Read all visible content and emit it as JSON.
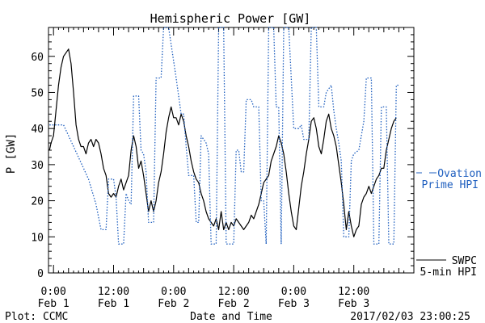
{
  "chart_data": {
    "type": "line",
    "title": "Hemispheric Power [GW]",
    "xlabel": "Date and Time",
    "ylabel": "P [GW]",
    "ylim": [
      0,
      68
    ],
    "y_ticks": [
      0,
      10,
      20,
      30,
      40,
      50,
      60
    ],
    "x_ticks": [
      {
        "t": 0,
        "time": "0:00",
        "date": "Feb 1"
      },
      {
        "t": 12,
        "time": "12:00",
        "date": "Feb 1"
      },
      {
        "t": 24,
        "time": "0:00",
        "date": "Feb 2"
      },
      {
        "t": 36,
        "time": "12:00",
        "date": "Feb 2"
      },
      {
        "t": 48,
        "time": "0:00",
        "date": "Feb 3"
      },
      {
        "t": 60,
        "time": "12:00",
        "date": "Feb 3"
      }
    ],
    "x_range_hours": [
      -1,
      72
    ],
    "footer_left": "Plot: CCMC",
    "footer_right": "2017/02/03 23:00:25",
    "grid": false,
    "series": [
      {
        "name": "SWPC 5-min HPI",
        "label_lines": [
          "SWPC",
          "5-min HPI"
        ],
        "style": "solid",
        "color": "#000000",
        "points": [
          [
            -0.8,
            34
          ],
          [
            -0.5,
            36
          ],
          [
            0,
            38
          ],
          [
            0.5,
            45
          ],
          [
            1,
            52
          ],
          [
            1.5,
            57
          ],
          [
            2,
            60
          ],
          [
            2.5,
            61
          ],
          [
            3,
            62
          ],
          [
            3.5,
            58
          ],
          [
            4,
            50
          ],
          [
            4.5,
            41
          ],
          [
            5,
            37
          ],
          [
            5.5,
            35
          ],
          [
            6,
            35
          ],
          [
            6.5,
            33
          ],
          [
            7,
            36
          ],
          [
            7.5,
            37
          ],
          [
            8,
            35
          ],
          [
            8.5,
            37
          ],
          [
            9,
            36
          ],
          [
            9.5,
            33
          ],
          [
            10,
            29
          ],
          [
            10.5,
            27
          ],
          [
            11,
            22
          ],
          [
            11.5,
            21
          ],
          [
            12,
            22
          ],
          [
            12.5,
            21
          ],
          [
            13,
            24
          ],
          [
            13.5,
            26
          ],
          [
            14,
            23
          ],
          [
            14.5,
            25
          ],
          [
            15,
            27
          ],
          [
            15.5,
            34
          ],
          [
            16,
            38
          ],
          [
            16.5,
            35
          ],
          [
            17,
            29
          ],
          [
            17.5,
            31
          ],
          [
            18,
            27
          ],
          [
            18.5,
            22
          ],
          [
            19,
            17
          ],
          [
            19.5,
            20
          ],
          [
            20,
            17
          ],
          [
            20.5,
            20
          ],
          [
            21,
            25
          ],
          [
            21.5,
            28
          ],
          [
            22,
            33
          ],
          [
            22.5,
            39
          ],
          [
            23,
            43
          ],
          [
            23.5,
            46
          ],
          [
            24,
            43
          ],
          [
            24.5,
            43
          ],
          [
            25,
            41
          ],
          [
            25.5,
            44
          ],
          [
            26,
            42
          ],
          [
            26.5,
            38
          ],
          [
            27,
            35
          ],
          [
            27.5,
            31
          ],
          [
            28,
            28
          ],
          [
            28.5,
            26
          ],
          [
            29,
            25
          ],
          [
            29.5,
            22
          ],
          [
            30,
            20
          ],
          [
            30.5,
            17
          ],
          [
            31,
            15
          ],
          [
            31.5,
            14
          ],
          [
            32,
            13
          ],
          [
            32.5,
            15
          ],
          [
            33,
            12
          ],
          [
            33.5,
            17
          ],
          [
            34,
            12
          ],
          [
            34.5,
            14
          ],
          [
            35,
            12
          ],
          [
            35.5,
            14
          ],
          [
            36,
            13
          ],
          [
            36.5,
            15
          ],
          [
            37,
            14
          ],
          [
            37.5,
            13
          ],
          [
            38,
            12
          ],
          [
            38.5,
            13
          ],
          [
            39,
            14
          ],
          [
            39.5,
            16
          ],
          [
            40,
            15
          ],
          [
            40.5,
            17
          ],
          [
            41,
            19
          ],
          [
            41.5,
            22
          ],
          [
            42,
            25
          ],
          [
            42.5,
            26
          ],
          [
            43,
            27
          ],
          [
            43.5,
            31
          ],
          [
            44,
            33
          ],
          [
            44.5,
            35
          ],
          [
            45,
            38
          ],
          [
            45.5,
            36
          ],
          [
            46,
            33
          ],
          [
            46.5,
            28
          ],
          [
            47,
            22
          ],
          [
            47.5,
            17
          ],
          [
            48,
            13
          ],
          [
            48.5,
            12
          ],
          [
            49,
            18
          ],
          [
            49.5,
            24
          ],
          [
            50,
            28
          ],
          [
            50.5,
            33
          ],
          [
            51,
            37
          ],
          [
            51.5,
            42
          ],
          [
            52,
            43
          ],
          [
            52.5,
            40
          ],
          [
            53,
            35
          ],
          [
            53.5,
            33
          ],
          [
            54,
            37
          ],
          [
            54.5,
            42
          ],
          [
            55,
            44
          ],
          [
            55.5,
            40
          ],
          [
            56,
            38
          ],
          [
            56.5,
            35
          ],
          [
            57,
            30
          ],
          [
            57.5,
            25
          ],
          [
            58,
            19
          ],
          [
            58.5,
            12
          ],
          [
            59,
            17
          ],
          [
            59.5,
            13
          ],
          [
            60,
            10
          ],
          [
            60.5,
            12
          ],
          [
            61,
            13
          ],
          [
            61.5,
            19
          ],
          [
            62,
            21
          ],
          [
            62.5,
            22
          ],
          [
            63,
            24
          ],
          [
            63.5,
            22
          ],
          [
            64,
            24
          ],
          [
            64.5,
            26
          ],
          [
            65,
            27
          ],
          [
            65.5,
            29
          ],
          [
            66,
            29
          ],
          [
            66.5,
            34
          ],
          [
            67,
            37
          ],
          [
            67.5,
            40
          ],
          [
            68,
            42
          ],
          [
            68.5,
            43
          ]
        ]
      },
      {
        "name": "Ovation Prime HPI",
        "label_lines": [
          "Ovation",
          "Prime HPI"
        ],
        "style": "dotted",
        "color": "#1f5fbf",
        "points": [
          [
            -0.8,
            41
          ],
          [
            2,
            41
          ],
          [
            3,
            38
          ],
          [
            5,
            32
          ],
          [
            7,
            26
          ],
          [
            8.5,
            19
          ],
          [
            9.5,
            12
          ],
          [
            10.5,
            12
          ],
          [
            11,
            26
          ],
          [
            12,
            26
          ],
          [
            12.5,
            21
          ],
          [
            13,
            8
          ],
          [
            14,
            8
          ],
          [
            14.5,
            22
          ],
          [
            15,
            20
          ],
          [
            15.5,
            19
          ],
          [
            16,
            49
          ],
          [
            17,
            49
          ],
          [
            17.5,
            34
          ],
          [
            18,
            33
          ],
          [
            18.5,
            28
          ],
          [
            19,
            14
          ],
          [
            20,
            14
          ],
          [
            20.5,
            54
          ],
          [
            21.5,
            54
          ],
          [
            22,
            68
          ],
          [
            23,
            68
          ],
          [
            24.5,
            54
          ],
          [
            25.5,
            44
          ],
          [
            26,
            44
          ],
          [
            26.5,
            35
          ],
          [
            27,
            27
          ],
          [
            28,
            27
          ],
          [
            28.5,
            14
          ],
          [
            29,
            14
          ],
          [
            29.5,
            38
          ],
          [
            30.5,
            36
          ],
          [
            31,
            33
          ],
          [
            31.5,
            8
          ],
          [
            32.5,
            8
          ],
          [
            33,
            68
          ],
          [
            34,
            68
          ],
          [
            34.5,
            8
          ],
          [
            36,
            8
          ],
          [
            36.5,
            34
          ],
          [
            37,
            34
          ],
          [
            37.5,
            28
          ],
          [
            38,
            28
          ],
          [
            38.5,
            48
          ],
          [
            39.5,
            48
          ],
          [
            40,
            46
          ],
          [
            41,
            46
          ],
          [
            41.5,
            20
          ],
          [
            42,
            20
          ],
          [
            42.5,
            8
          ],
          [
            43,
            68
          ],
          [
            44,
            68
          ],
          [
            44.5,
            46
          ],
          [
            45,
            46
          ],
          [
            45.5,
            8
          ],
          [
            46,
            68
          ],
          [
            47,
            68
          ],
          [
            48,
            40
          ],
          [
            49,
            40
          ],
          [
            49.5,
            41
          ],
          [
            50,
            37
          ],
          [
            51,
            37
          ],
          [
            51.5,
            68
          ],
          [
            52.5,
            68
          ],
          [
            53,
            46
          ],
          [
            54,
            46
          ],
          [
            54.5,
            50
          ],
          [
            55.5,
            52
          ],
          [
            56,
            45
          ],
          [
            56.5,
            40
          ],
          [
            57,
            36
          ],
          [
            57.5,
            31
          ],
          [
            58,
            10
          ],
          [
            59,
            10
          ],
          [
            59.5,
            31
          ],
          [
            60,
            33
          ],
          [
            61,
            34
          ],
          [
            61.5,
            38
          ],
          [
            62,
            42
          ],
          [
            62.5,
            54
          ],
          [
            63.5,
            54
          ],
          [
            64,
            8
          ],
          [
            65,
            8
          ],
          [
            65.5,
            46
          ],
          [
            66.5,
            46
          ],
          [
            67,
            8
          ],
          [
            68,
            8
          ],
          [
            68.5,
            52
          ],
          [
            69,
            52
          ]
        ]
      }
    ]
  }
}
